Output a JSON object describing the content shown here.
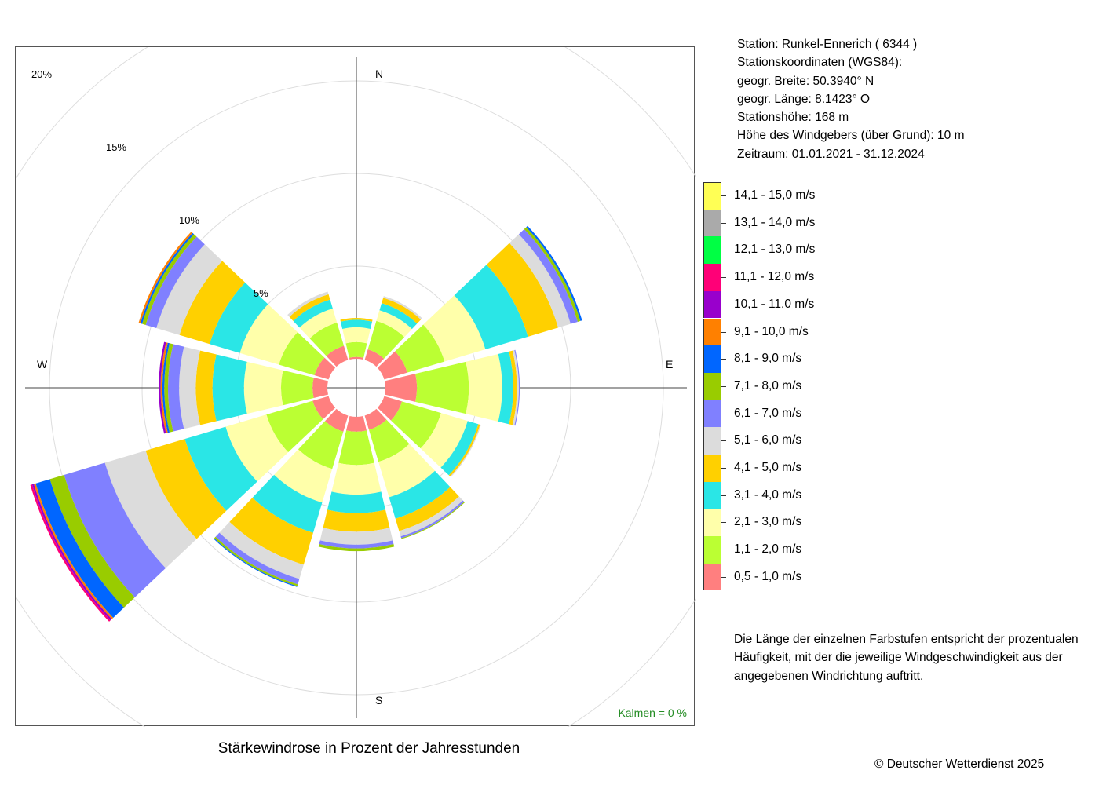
{
  "caption": "Stärkewindrose in Prozent der Jahresstunden",
  "station": {
    "line1": "Station:  Runkel-Ennerich  ( 6344 )",
    "line2": "Stationskoordinaten (WGS84):",
    "line3": "geogr. Breite: 50.3940° N",
    "line4": "geogr. Länge:   8.1423° O",
    "line5": "Stationshöhe: 168 m",
    "line6": "Höhe des Windgebers (über Grund): 10 m",
    "line7": "Zeitraum: 01.01.2021 - 31.12.2024"
  },
  "note": "Die Länge der einzelnen Farbstufen entspricht der prozentualen Häufigkeit, mit der die jeweilige Windgeschwindigkeit aus der angegebenen Windrichtung auftritt.",
  "copyright": "© Deutscher Wetterdienst  2025",
  "chart_data": {
    "type": "windrose",
    "unit": "%",
    "radial_ticks": [
      5,
      10,
      15,
      20
    ],
    "radial_tick_labels": [
      "5%",
      "10%",
      "15%",
      "20%"
    ],
    "compass_labels": {
      "N": "N",
      "E": "E",
      "S": "S",
      "W": "W"
    },
    "calms_label": "Kalmen  =  0 %",
    "bins": [
      {
        "label": "0,5 - 1,0 m/s",
        "color": "#ff7f7f"
      },
      {
        "label": "1,1 - 2,0 m/s",
        "color": "#bbff33"
      },
      {
        "label": "2,1 - 3,0 m/s",
        "color": "#ffffaa"
      },
      {
        "label": "3,1 - 4,0 m/s",
        "color": "#2ae6e6"
      },
      {
        "label": "4,1 - 5,0 m/s",
        "color": "#ffd000"
      },
      {
        "label": "5,1 - 6,0 m/s",
        "color": "#dcdcdc"
      },
      {
        "label": "6,1 - 7,0 m/s",
        "color": "#8080ff"
      },
      {
        "label": "7,1 - 8,0 m/s",
        "color": "#99cc00"
      },
      {
        "label": "8,1 - 9,0 m/s",
        "color": "#0066ff"
      },
      {
        "label": "9,1 - 10,0 m/s",
        "color": "#ff8000"
      },
      {
        "label": "10,1 - 11,0 m/s",
        "color": "#9900cc"
      },
      {
        "label": "11,1 - 12,0 m/s",
        "color": "#ff0077"
      },
      {
        "label": "12,1 - 13,0 m/s",
        "color": "#00ff44"
      },
      {
        "label": "13,1 - 14,0 m/s",
        "color": "#aaaaaa"
      },
      {
        "label": "14,1 - 15,0 m/s",
        "color": "#ffff55"
      }
    ],
    "sectors": [
      {
        "direction_deg": 0,
        "values": [
          0.1,
          0.8,
          0.8,
          0.4,
          0.1
        ]
      },
      {
        "direction_deg": 30,
        "values": [
          0.6,
          1.6,
          0.6,
          0.4,
          0.3,
          0.1
        ]
      },
      {
        "direction_deg": 60,
        "values": [
          1.3,
          2.1,
          2.3,
          2.4,
          1.7,
          0.7,
          0.4,
          0.15,
          0.1
        ]
      },
      {
        "direction_deg": 90,
        "values": [
          1.7,
          2.8,
          1.8,
          0.6,
          0.2,
          0.1,
          0.05
        ]
      },
      {
        "direction_deg": 120,
        "values": [
          1.0,
          2.2,
          1.5,
          0.6,
          0.1,
          0.05
        ]
      },
      {
        "direction_deg": 150,
        "values": [
          0.8,
          1.8,
          2.0,
          1.2,
          0.7,
          0.3,
          0.1,
          0.05
        ]
      },
      {
        "direction_deg": 180,
        "values": [
          0.8,
          1.8,
          1.6,
          1.0,
          1.0,
          0.7,
          0.2,
          0.15
        ]
      },
      {
        "direction_deg": 210,
        "values": [
          0.9,
          2.1,
          1.9,
          1.7,
          1.8,
          0.8,
          0.3,
          0.1,
          0.05
        ]
      },
      {
        "direction_deg": 240,
        "values": [
          0.9,
          2.6,
          2.3,
          2.3,
          2.2,
          2.3,
          2.3,
          0.8,
          0.8,
          0.1,
          0.1,
          0.1
        ]
      },
      {
        "direction_deg": 270,
        "values": [
          0.8,
          1.7,
          2.0,
          1.7,
          0.9,
          0.9,
          0.6,
          0.2,
          0.1,
          0.1,
          0.1
        ]
      },
      {
        "direction_deg": 300,
        "values": [
          0.8,
          2.0,
          2.2,
          1.7,
          1.7,
          1.3,
          0.6,
          0.2,
          0.1,
          0.1
        ]
      },
      {
        "direction_deg": 330,
        "values": [
          0.8,
          1.3,
          0.8,
          0.5,
          0.3,
          0.15
        ]
      }
    ]
  }
}
